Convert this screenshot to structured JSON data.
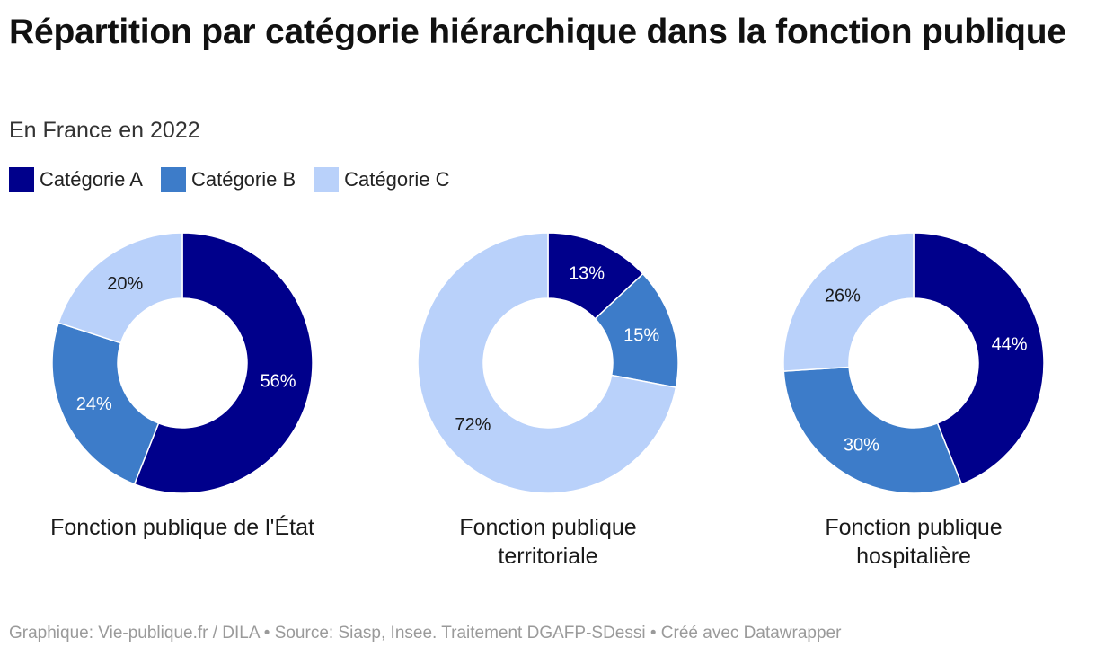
{
  "title": "Répartition par catégorie hiérarchique dans la fonction publique",
  "subtitle": "En France en 2022",
  "legend": [
    {
      "label": "Catégorie A",
      "color": "#00008b"
    },
    {
      "label": "Catégorie B",
      "color": "#3d7cc9"
    },
    {
      "label": "Catégorie C",
      "color": "#b9d1fa"
    }
  ],
  "footer": "Graphique: Vie-publique.fr / DILA • Source: Siasp, Insee. Traitement DGAFP-SDessi • Créé avec Datawrapper",
  "chart_data": [
    {
      "type": "pie",
      "title": "Fonction publique de l'État",
      "title_lines": [
        "Fonction publique de l'État"
      ],
      "categories": [
        "Catégorie A",
        "Catégorie B",
        "Catégorie C"
      ],
      "values": [
        56,
        24,
        20
      ],
      "labels": [
        "56%",
        "24%",
        "20%"
      ],
      "colors": [
        "#00008b",
        "#3d7cc9",
        "#b9d1fa"
      ],
      "label_colors": [
        "#ffffff",
        "#ffffff",
        "#1a1a1a"
      ]
    },
    {
      "type": "pie",
      "title": "Fonction publique territoriale",
      "title_lines": [
        "Fonction publique",
        "territoriale"
      ],
      "categories": [
        "Catégorie A",
        "Catégorie B",
        "Catégorie C"
      ],
      "values": [
        13,
        15,
        72
      ],
      "labels": [
        "13%",
        "15%",
        "72%"
      ],
      "colors": [
        "#00008b",
        "#3d7cc9",
        "#b9d1fa"
      ],
      "label_colors": [
        "#ffffff",
        "#ffffff",
        "#1a1a1a"
      ]
    },
    {
      "type": "pie",
      "title": "Fonction publique hospitalière",
      "title_lines": [
        "Fonction publique",
        "hospitalière"
      ],
      "categories": [
        "Catégorie A",
        "Catégorie B",
        "Catégorie C"
      ],
      "values": [
        44,
        30,
        26
      ],
      "labels": [
        "44%",
        "30%",
        "26%"
      ],
      "colors": [
        "#00008b",
        "#3d7cc9",
        "#b9d1fa"
      ],
      "label_colors": [
        "#ffffff",
        "#ffffff",
        "#1a1a1a"
      ]
    }
  ]
}
